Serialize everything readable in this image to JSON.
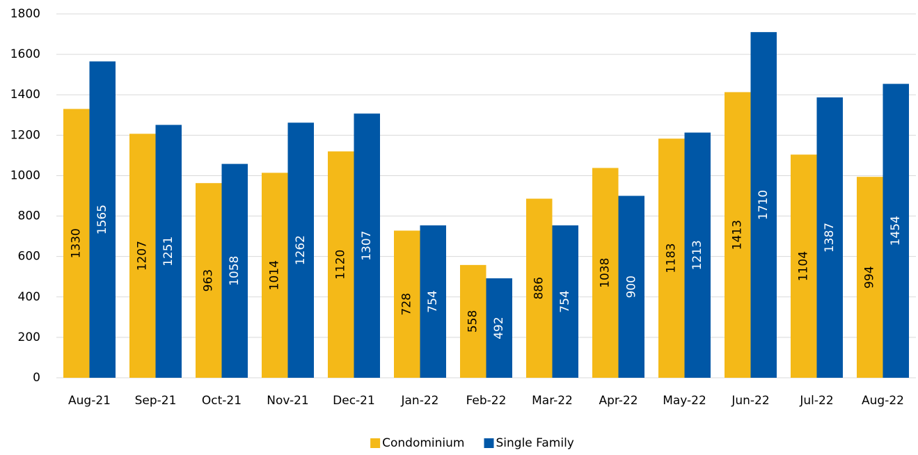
{
  "chart_data": {
    "type": "bar",
    "categories": [
      "Aug-21",
      "Sep-21",
      "Oct-21",
      "Nov-21",
      "Dec-21",
      "Jan-22",
      "Feb-22",
      "Mar-22",
      "Apr-22",
      "May-22",
      "Jun-22",
      "Jul-22",
      "Aug-22"
    ],
    "series": [
      {
        "name": "Condominium",
        "color": "#f4b918",
        "values": [
          1330,
          1207,
          963,
          1014,
          1120,
          728,
          558,
          886,
          1038,
          1183,
          1413,
          1104,
          994
        ]
      },
      {
        "name": "Single Family",
        "color": "#0057a6",
        "values": [
          1565,
          1251,
          1058,
          1262,
          1307,
          754,
          492,
          754,
          900,
          1213,
          1710,
          1387,
          1454
        ]
      }
    ],
    "ylim": [
      0,
      1800
    ],
    "yticks": [
      0,
      200,
      400,
      600,
      800,
      1000,
      1200,
      1400,
      1600,
      1800
    ],
    "grid": true,
    "legend": "bottom"
  }
}
